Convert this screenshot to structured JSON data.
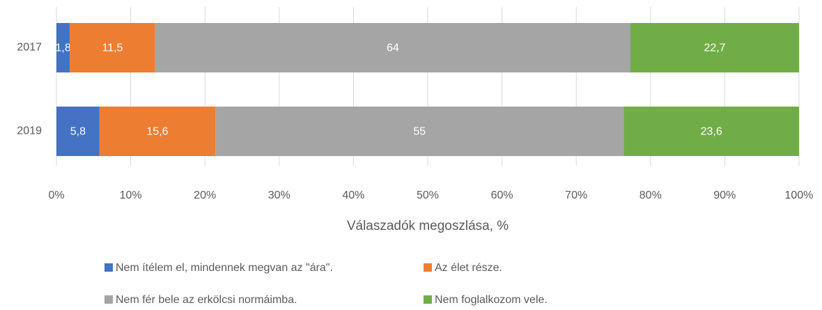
{
  "chart_data": {
    "type": "bar",
    "orientation": "horizontal",
    "stacked": true,
    "categories": [
      "2017",
      "2019"
    ],
    "series": [
      {
        "name": "Nem ítélem el, mindennek megvan az \"ára\".",
        "color": "#4472c4",
        "values": [
          1.8,
          5.8
        ],
        "value_labels": [
          "1,8",
          "5,8"
        ]
      },
      {
        "name": "Az élet része.",
        "color": "#ed7d31",
        "values": [
          11.5,
          15.6
        ],
        "value_labels": [
          "11,5",
          "15,6"
        ]
      },
      {
        "name": "Nem fér bele az erkölcsi normáimba.",
        "color": "#a5a5a5",
        "values": [
          64,
          55
        ],
        "value_labels": [
          "64",
          "55"
        ]
      },
      {
        "name": "Nem foglalkozom vele.",
        "color": "#70ad47",
        "values": [
          22.7,
          23.6
        ],
        "value_labels": [
          "22,7",
          "23,6"
        ]
      }
    ],
    "xlabel": "Válaszadók megoszlása, %",
    "xlim": [
      0,
      100
    ],
    "xticks": [
      {
        "value": 0,
        "label": "0%"
      },
      {
        "value": 10,
        "label": "10%"
      },
      {
        "value": 20,
        "label": "20%"
      },
      {
        "value": 30,
        "label": "30%"
      },
      {
        "value": 40,
        "label": "40%"
      },
      {
        "value": 50,
        "label": "50%"
      },
      {
        "value": 60,
        "label": "60%"
      },
      {
        "value": 70,
        "label": "70%"
      },
      {
        "value": 80,
        "label": "80%"
      },
      {
        "value": 90,
        "label": "90%"
      },
      {
        "value": 100,
        "label": "100%"
      }
    ],
    "grid": true,
    "legend": "bottom"
  }
}
